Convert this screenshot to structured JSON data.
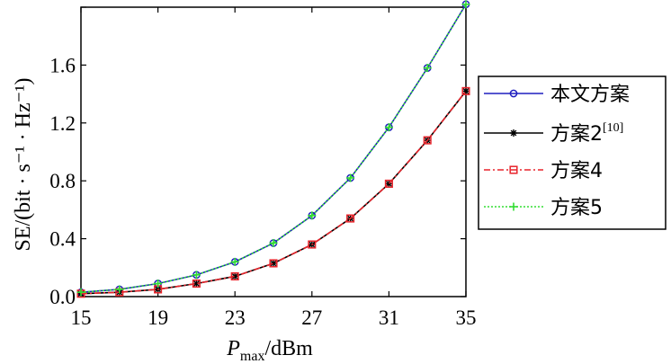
{
  "chart_data": {
    "type": "line",
    "xlabel_prefix": "P",
    "xlabel_sub": "max",
    "xlabel_unit": "/dBm",
    "ylabel": "SE/(bit · s⁻¹ · Hz⁻¹)",
    "xlim": [
      15,
      35
    ],
    "ylim": [
      0.0,
      2.0
    ],
    "xticks": [
      15,
      19,
      23,
      27,
      31,
      35
    ],
    "yticks": [
      0.0,
      0.4,
      0.8,
      1.2,
      1.6,
      2.0
    ],
    "ytick_labels": [
      "0.0",
      "0.4",
      "0.8",
      "1.2",
      "1.6"
    ],
    "grid": false,
    "legend_position": "right",
    "x": [
      15,
      17,
      19,
      21,
      23,
      25,
      27,
      29,
      31,
      33,
      35
    ],
    "series": [
      {
        "name": "本文方案",
        "color": "#1f1fbf",
        "marker": "circle",
        "linestyle": "solid",
        "values": [
          0.03,
          0.05,
          0.09,
          0.15,
          0.24,
          0.37,
          0.56,
          0.82,
          1.17,
          1.58,
          2.02
        ]
      },
      {
        "name": "方案2",
        "name_sup": "[10]",
        "color": "#000000",
        "marker": "asterisk",
        "linestyle": "solid",
        "values": [
          0.02,
          0.03,
          0.05,
          0.09,
          0.14,
          0.23,
          0.36,
          0.54,
          0.78,
          1.08,
          1.42
        ]
      },
      {
        "name": "方案4",
        "color": "#e8242b",
        "marker": "square",
        "linestyle": "dashdot",
        "values": [
          0.02,
          0.03,
          0.05,
          0.09,
          0.14,
          0.23,
          0.36,
          0.54,
          0.78,
          1.08,
          1.42
        ]
      },
      {
        "name": "方案5",
        "color": "#33dd33",
        "marker": "plus",
        "linestyle": "dotted",
        "values": [
          0.03,
          0.05,
          0.09,
          0.15,
          0.24,
          0.37,
          0.56,
          0.82,
          1.17,
          1.58,
          2.02
        ]
      }
    ]
  }
}
